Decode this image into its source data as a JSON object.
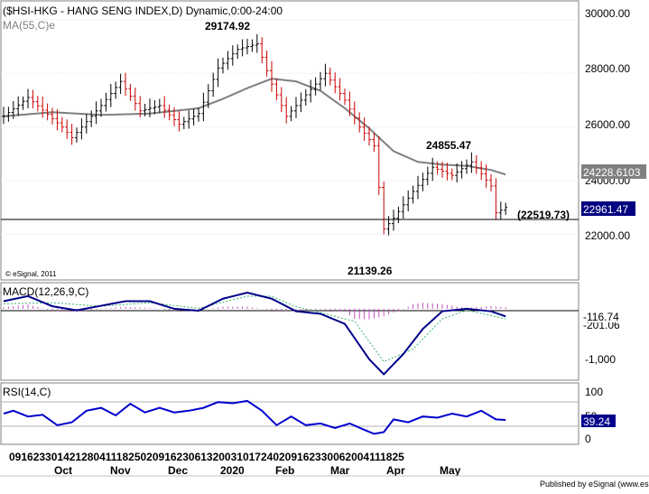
{
  "chart_data": [
    {
      "type": "candlestick",
      "title": "($HSI-HKG - HANG SENG INDEX,D) Dynamic,0:00-24:00",
      "indicator_label": "MA(55,C)e",
      "copyright": "© eSignal, 2011",
      "ylim": [
        20300,
        30700
      ],
      "y_ticks": [
        {
          "value": 30000,
          "label": "30000.00"
        },
        {
          "value": 28000,
          "label": "28000.00"
        },
        {
          "value": 26000,
          "label": "26000.00"
        },
        {
          "value": 24000,
          "label": "24000.00"
        },
        {
          "value": 22000,
          "label": "22000.00"
        }
      ],
      "price_box_ma": {
        "value": 24228.6103,
        "label": "24228.6103"
      },
      "price_box_last": {
        "value": 22961.47,
        "label": "22961.47"
      },
      "support_line": {
        "value": 22519.73,
        "label": "(22519.73)"
      },
      "annotations": [
        {
          "text": "29174.92",
          "index": 50,
          "value": 29174.92
        },
        {
          "text": "24855.47",
          "index": 91,
          "value": 24855.47
        },
        {
          "text": "21139.26",
          "index": 76,
          "value": 21139.26
        }
      ],
      "series": [
        {
          "name": "MA(55,C)e",
          "kind": "line",
          "color": "#7f7f7f",
          "values": [
            [
              0,
              26400
            ],
            [
              10,
              26550
            ],
            [
              20,
              26450
            ],
            [
              30,
              26500
            ],
            [
              40,
              26700
            ],
            [
              45,
              27050
            ],
            [
              50,
              27450
            ],
            [
              55,
              27800
            ],
            [
              60,
              27700
            ],
            [
              65,
              27350
            ],
            [
              70,
              26700
            ],
            [
              75,
              25950
            ],
            [
              80,
              25100
            ],
            [
              85,
              24700
            ],
            [
              90,
              24600
            ],
            [
              95,
              24550
            ],
            [
              100,
              24400
            ],
            [
              103,
              24230
            ]
          ]
        }
      ]
    },
    {
      "type": "line",
      "title": "MACD(12,26,9,C)",
      "ylim": [
        -1400,
        500
      ],
      "y_ticks": [
        {
          "value": -1000,
          "label": "-1,000"
        }
      ],
      "price_box_macd": {
        "value": -116.74,
        "label": "-116.74"
      },
      "price_box_signal": {
        "label": "-201.06"
      },
      "series": [
        {
          "name": "MACD",
          "kind": "line",
          "color": "#00008b",
          "values": [
            [
              0,
              150
            ],
            [
              5,
              250
            ],
            [
              10,
              50
            ],
            [
              15,
              -30
            ],
            [
              20,
              60
            ],
            [
              25,
              150
            ],
            [
              30,
              150
            ],
            [
              35,
              0
            ],
            [
              40,
              -40
            ],
            [
              45,
              200
            ],
            [
              50,
              320
            ],
            [
              55,
              200
            ],
            [
              60,
              -50
            ],
            [
              65,
              -100
            ],
            [
              70,
              -300
            ],
            [
              75,
              -1000
            ],
            [
              78,
              -1300
            ],
            [
              82,
              -900
            ],
            [
              86,
              -400
            ],
            [
              90,
              -50
            ],
            [
              95,
              0
            ],
            [
              100,
              -50
            ],
            [
              103,
              -150
            ]
          ]
        },
        {
          "name": "Signal",
          "kind": "line",
          "color": "#3cb371",
          "values": [
            [
              0,
              100
            ],
            [
              10,
              120
            ],
            [
              20,
              50
            ],
            [
              30,
              120
            ],
            [
              40,
              10
            ],
            [
              50,
              250
            ],
            [
              55,
              250
            ],
            [
              60,
              40
            ],
            [
              66,
              -100
            ],
            [
              72,
              -250
            ],
            [
              78,
              -1050
            ],
            [
              84,
              -800
            ],
            [
              90,
              -200
            ],
            [
              95,
              -30
            ],
            [
              103,
              -200
            ]
          ]
        }
      ]
    },
    {
      "type": "line",
      "title": "RSI(14,C)",
      "ylim": [
        0,
        100
      ],
      "y_ticks": [
        {
          "value": 100,
          "label": "100"
        },
        {
          "value": 50,
          "label": "50"
        },
        {
          "value": 0,
          "label": "0"
        }
      ],
      "guide_lines": [
        75,
        25
      ],
      "price_box_rsi": {
        "value": 39.24,
        "label": "39.24"
      },
      "series": [
        {
          "name": "RSI",
          "kind": "line",
          "color": "#0000cd",
          "values": [
            [
              0,
              50
            ],
            [
              2,
              55
            ],
            [
              5,
              45
            ],
            [
              8,
              48
            ],
            [
              11,
              30
            ],
            [
              14,
              35
            ],
            [
              17,
              55
            ],
            [
              20,
              60
            ],
            [
              23,
              47
            ],
            [
              26,
              67
            ],
            [
              29,
              52
            ],
            [
              32,
              60
            ],
            [
              35,
              52
            ],
            [
              38,
              55
            ],
            [
              41,
              60
            ],
            [
              44,
              70
            ],
            [
              47,
              68
            ],
            [
              50,
              72
            ],
            [
              53,
              55
            ],
            [
              56,
              30
            ],
            [
              59,
              45
            ],
            [
              62,
              30
            ],
            [
              65,
              33
            ],
            [
              68,
              25
            ],
            [
              71,
              33
            ],
            [
              74,
              22
            ],
            [
              76,
              15
            ],
            [
              78,
              18
            ],
            [
              80,
              40
            ],
            [
              83,
              35
            ],
            [
              86,
              45
            ],
            [
              89,
              43
            ],
            [
              92,
              50
            ],
            [
              95,
              45
            ],
            [
              98,
              55
            ],
            [
              101,
              40
            ],
            [
              103,
              39
            ]
          ]
        }
      ]
    }
  ],
  "x_axis": {
    "day_labels": [
      "09",
      "16",
      "23",
      "30",
      "14",
      "21",
      "28",
      "04",
      "11",
      "18",
      "25",
      "02",
      "09",
      "16",
      "23",
      "06",
      "13",
      "20",
      "03",
      "10",
      "17",
      "24",
      "02",
      "09",
      "16",
      "23",
      "30",
      "06",
      "20",
      "04",
      "11",
      "18",
      "25"
    ],
    "month_labels": [
      "Oct",
      "Nov",
      "Dec",
      "2020",
      "Feb",
      "Mar",
      "Apr",
      "May"
    ]
  },
  "footer": {
    "text": "Published by eSignal (www.esignal.com)"
  }
}
